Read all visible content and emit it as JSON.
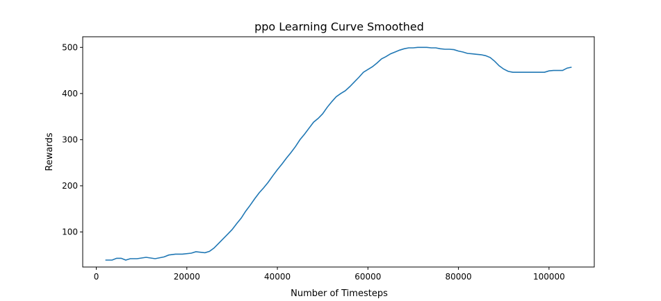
{
  "chart_data": {
    "type": "line",
    "title": "ppo Learning Curve Smoothed",
    "xlabel": "Number of Timesteps",
    "ylabel": "Rewards",
    "xlim": [
      -3000,
      110000
    ],
    "ylim": [
      24,
      523
    ],
    "xticks": [
      0,
      20000,
      40000,
      60000,
      80000,
      100000
    ],
    "yticks": [
      100,
      200,
      300,
      400,
      500
    ],
    "grid": false,
    "legend": "none",
    "color": "#1f77b4",
    "series": [
      {
        "x": [
          2000,
          3500,
          4500,
          5500,
          6500,
          7500,
          9000,
          11000,
          13000,
          15000,
          16000,
          17500,
          19000,
          21000,
          22000,
          24000,
          25000,
          26000,
          27000,
          28000,
          29000,
          30000,
          31000,
          32000,
          33000,
          34000,
          35000,
          36000,
          37000,
          38000,
          39000,
          40000,
          41000,
          42000,
          43000,
          44000,
          45000,
          46000,
          47000,
          48000,
          49000,
          50000,
          51000,
          52000,
          53000,
          54000,
          55000,
          56000,
          57000,
          58000,
          59000,
          60000,
          61000,
          62000,
          63000,
          64000,
          65000,
          66000,
          67000,
          68000,
          69000,
          70000,
          71000,
          72000,
          73000,
          74000,
          75000,
          76000,
          77000,
          78000,
          79000,
          80000,
          81000,
          82000,
          83000,
          84000,
          85000,
          86000,
          87000,
          88000,
          89000,
          90000,
          91000,
          92000,
          93000,
          94000,
          95000,
          96000,
          97000,
          98000,
          99000,
          100000,
          101000,
          102000,
          103000,
          104000,
          105000
        ],
        "values": [
          39,
          39,
          43,
          43,
          39,
          42,
          42,
          45,
          42,
          46,
          50,
          52,
          52,
          54,
          57,
          55,
          58,
          65,
          75,
          85,
          95,
          105,
          118,
          130,
          145,
          158,
          172,
          185,
          196,
          208,
          222,
          235,
          247,
          260,
          272,
          285,
          300,
          312,
          325,
          338,
          346,
          356,
          370,
          382,
          393,
          400,
          406,
          415,
          425,
          435,
          446,
          452,
          458,
          466,
          475,
          480,
          486,
          490,
          494,
          497,
          499,
          499,
          500,
          500,
          500,
          499,
          499,
          497,
          496,
          496,
          495,
          492,
          490,
          487,
          486,
          485,
          484,
          482,
          478,
          470,
          460,
          453,
          448,
          446,
          446,
          446,
          446,
          446,
          446,
          446,
          446,
          449,
          450,
          450,
          450,
          455,
          457
        ]
      }
    ]
  }
}
